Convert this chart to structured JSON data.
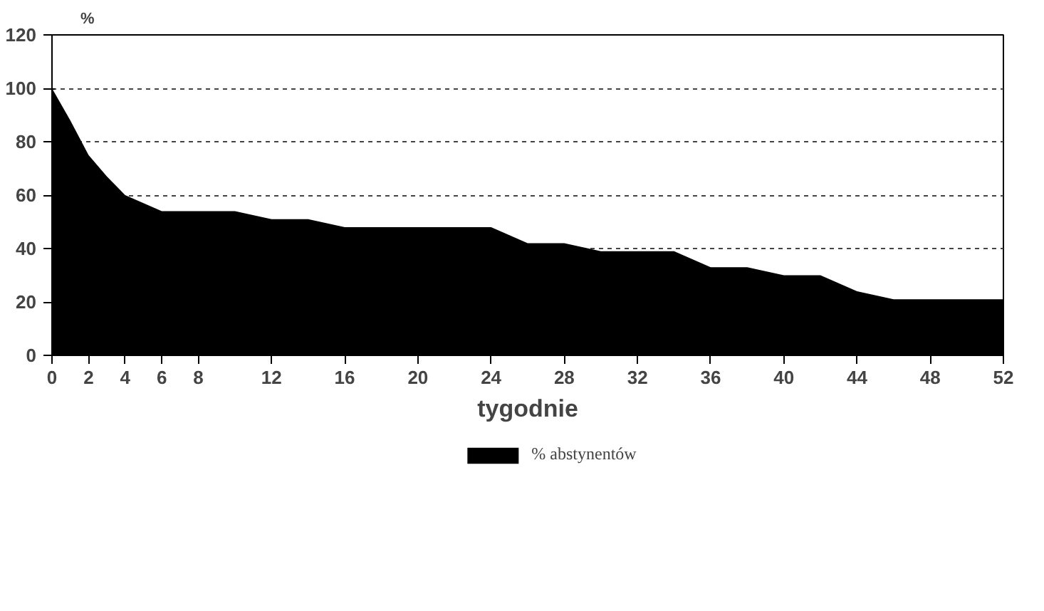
{
  "chart_data": {
    "type": "area",
    "xlabel": "tygodnie",
    "ylabel": "%",
    "x": [
      0,
      1,
      2,
      3,
      4,
      5,
      6,
      7,
      8,
      10,
      12,
      14,
      16,
      18,
      20,
      22,
      24,
      26,
      28,
      30,
      32,
      34,
      36,
      38,
      40,
      42,
      44,
      46,
      48,
      50,
      52
    ],
    "series": [
      {
        "name": "% abstynentów",
        "color": "#000000",
        "values": [
          100,
          88,
          75,
          67,
          60,
          57,
          54,
          54,
          54,
          54,
          51,
          51,
          48,
          48,
          48,
          48,
          48,
          42,
          42,
          39,
          39,
          39,
          33,
          33,
          30,
          30,
          24,
          21,
          21,
          21,
          21
        ]
      }
    ],
    "xlim": [
      0,
      52
    ],
    "xticks": [
      0,
      2,
      4,
      6,
      8,
      12,
      16,
      20,
      24,
      28,
      32,
      36,
      40,
      44,
      48,
      52
    ],
    "ylim": [
      0,
      120
    ],
    "yticks": [
      0,
      20,
      40,
      60,
      80,
      100,
      120
    ],
    "grid": "y",
    "legend": "bottom"
  }
}
